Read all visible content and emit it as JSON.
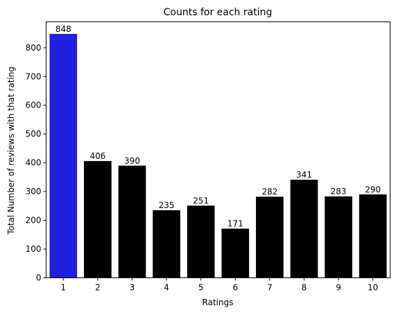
{
  "chart_data": {
    "type": "bar",
    "title": "Counts for each rating",
    "xlabel": "Ratings",
    "ylabel": "Total Number of reviews with that rating",
    "categories": [
      "1",
      "2",
      "3",
      "4",
      "5",
      "6",
      "7",
      "8",
      "9",
      "10"
    ],
    "values": [
      848,
      406,
      390,
      235,
      251,
      171,
      282,
      341,
      283,
      290
    ],
    "data_labels": [
      "848",
      "406",
      "390",
      "235",
      "251",
      "171",
      "282",
      "341",
      "283",
      "290"
    ],
    "bar_colors": [
      "#1f1fe0",
      "#000000",
      "#000000",
      "#000000",
      "#000000",
      "#000000",
      "#000000",
      "#000000",
      "#000000",
      "#000000"
    ],
    "ylim": [
      0,
      890
    ],
    "yticks": [
      0,
      100,
      200,
      300,
      400,
      500,
      600,
      700,
      800
    ],
    "ytick_labels": [
      "0",
      "100",
      "200",
      "300",
      "400",
      "500",
      "600",
      "700",
      "800"
    ],
    "grid": false
  }
}
